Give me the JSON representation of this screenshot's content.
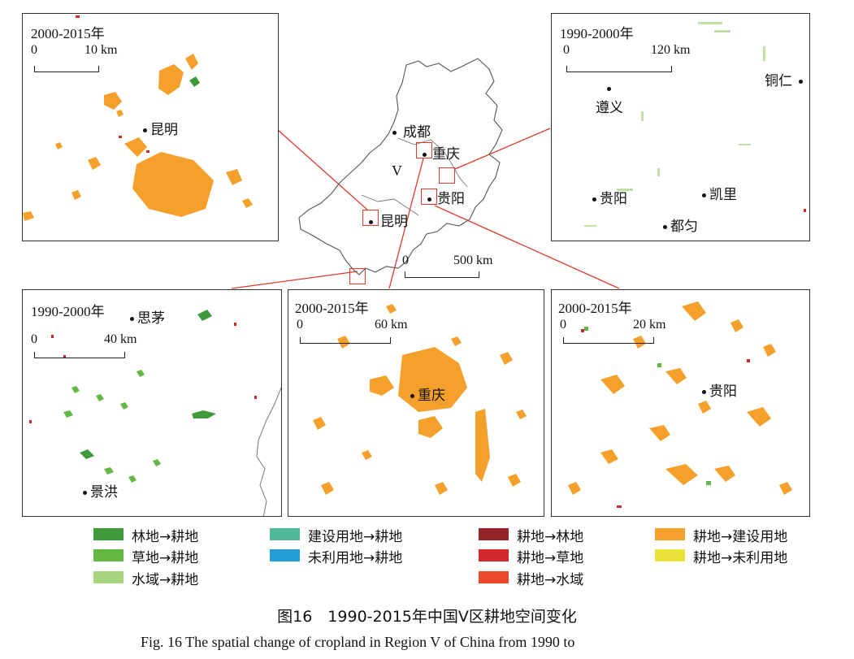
{
  "colors": {
    "forest_to_crop": "#3f9a3a",
    "grass_to_crop": "#63b844",
    "water_to_crop": "#a7d47e",
    "built_to_crop": "#52b89a",
    "unused_to_crop": "#239fd6",
    "crop_to_forest": "#96252a",
    "crop_to_grass": "#d3282c",
    "crop_to_water": "#ea4a2c",
    "crop_to_built": "#f4a02a",
    "crop_to_unused": "#e9e23b",
    "frame": "#333333",
    "connector": "#e0392b"
  },
  "panels": {
    "kunming": {
      "title": "2000-2015年",
      "scale_zero": "0",
      "scale_end": "10 km",
      "cities": [
        "昆明"
      ]
    },
    "zunyi": {
      "title": "1990-2000年",
      "scale_zero": "0",
      "scale_end": "120 km",
      "cities": [
        "遵义",
        "铜仁",
        "贵阳",
        "凯里",
        "都匀"
      ]
    },
    "simao": {
      "title": "1990-2000年",
      "scale_zero": "0",
      "scale_end": "40 km",
      "cities": [
        "思茅",
        "景洪"
      ]
    },
    "chongqing": {
      "title": "2000-2015年",
      "scale_zero": "0",
      "scale_end": "60 km",
      "cities": [
        "重庆"
      ]
    },
    "guiyang": {
      "title": "2000-2015年",
      "scale_zero": "0",
      "scale_end": "20 km",
      "cities": [
        "贵阳"
      ]
    }
  },
  "overview": {
    "region_label": "V",
    "cities": [
      "成都",
      "重庆",
      "贵阳",
      "昆明"
    ],
    "scale_zero": "0",
    "scale_end": "500 km"
  },
  "legend": [
    {
      "label": "林地→耕地",
      "color_key": "forest_to_crop"
    },
    {
      "label": "草地→耕地",
      "color_key": "grass_to_crop"
    },
    {
      "label": "水域→耕地",
      "color_key": "water_to_crop"
    },
    {
      "label": "建设用地→耕地",
      "color_key": "built_to_crop"
    },
    {
      "label": "未利用地→耕地",
      "color_key": "unused_to_crop"
    },
    {
      "label": "耕地→林地",
      "color_key": "crop_to_forest"
    },
    {
      "label": "耕地→草地",
      "color_key": "crop_to_grass"
    },
    {
      "label": "耕地→水域",
      "color_key": "crop_to_water"
    },
    {
      "label": "耕地→建设用地",
      "color_key": "crop_to_built"
    },
    {
      "label": "耕地→未利用地",
      "color_key": "crop_to_unused"
    }
  ],
  "caption": {
    "zh": "图16　1990-2015年中国V区耕地空间变化",
    "en": "Fig. 16   The spatial change of cropland in Region V of China from 1990 to"
  }
}
